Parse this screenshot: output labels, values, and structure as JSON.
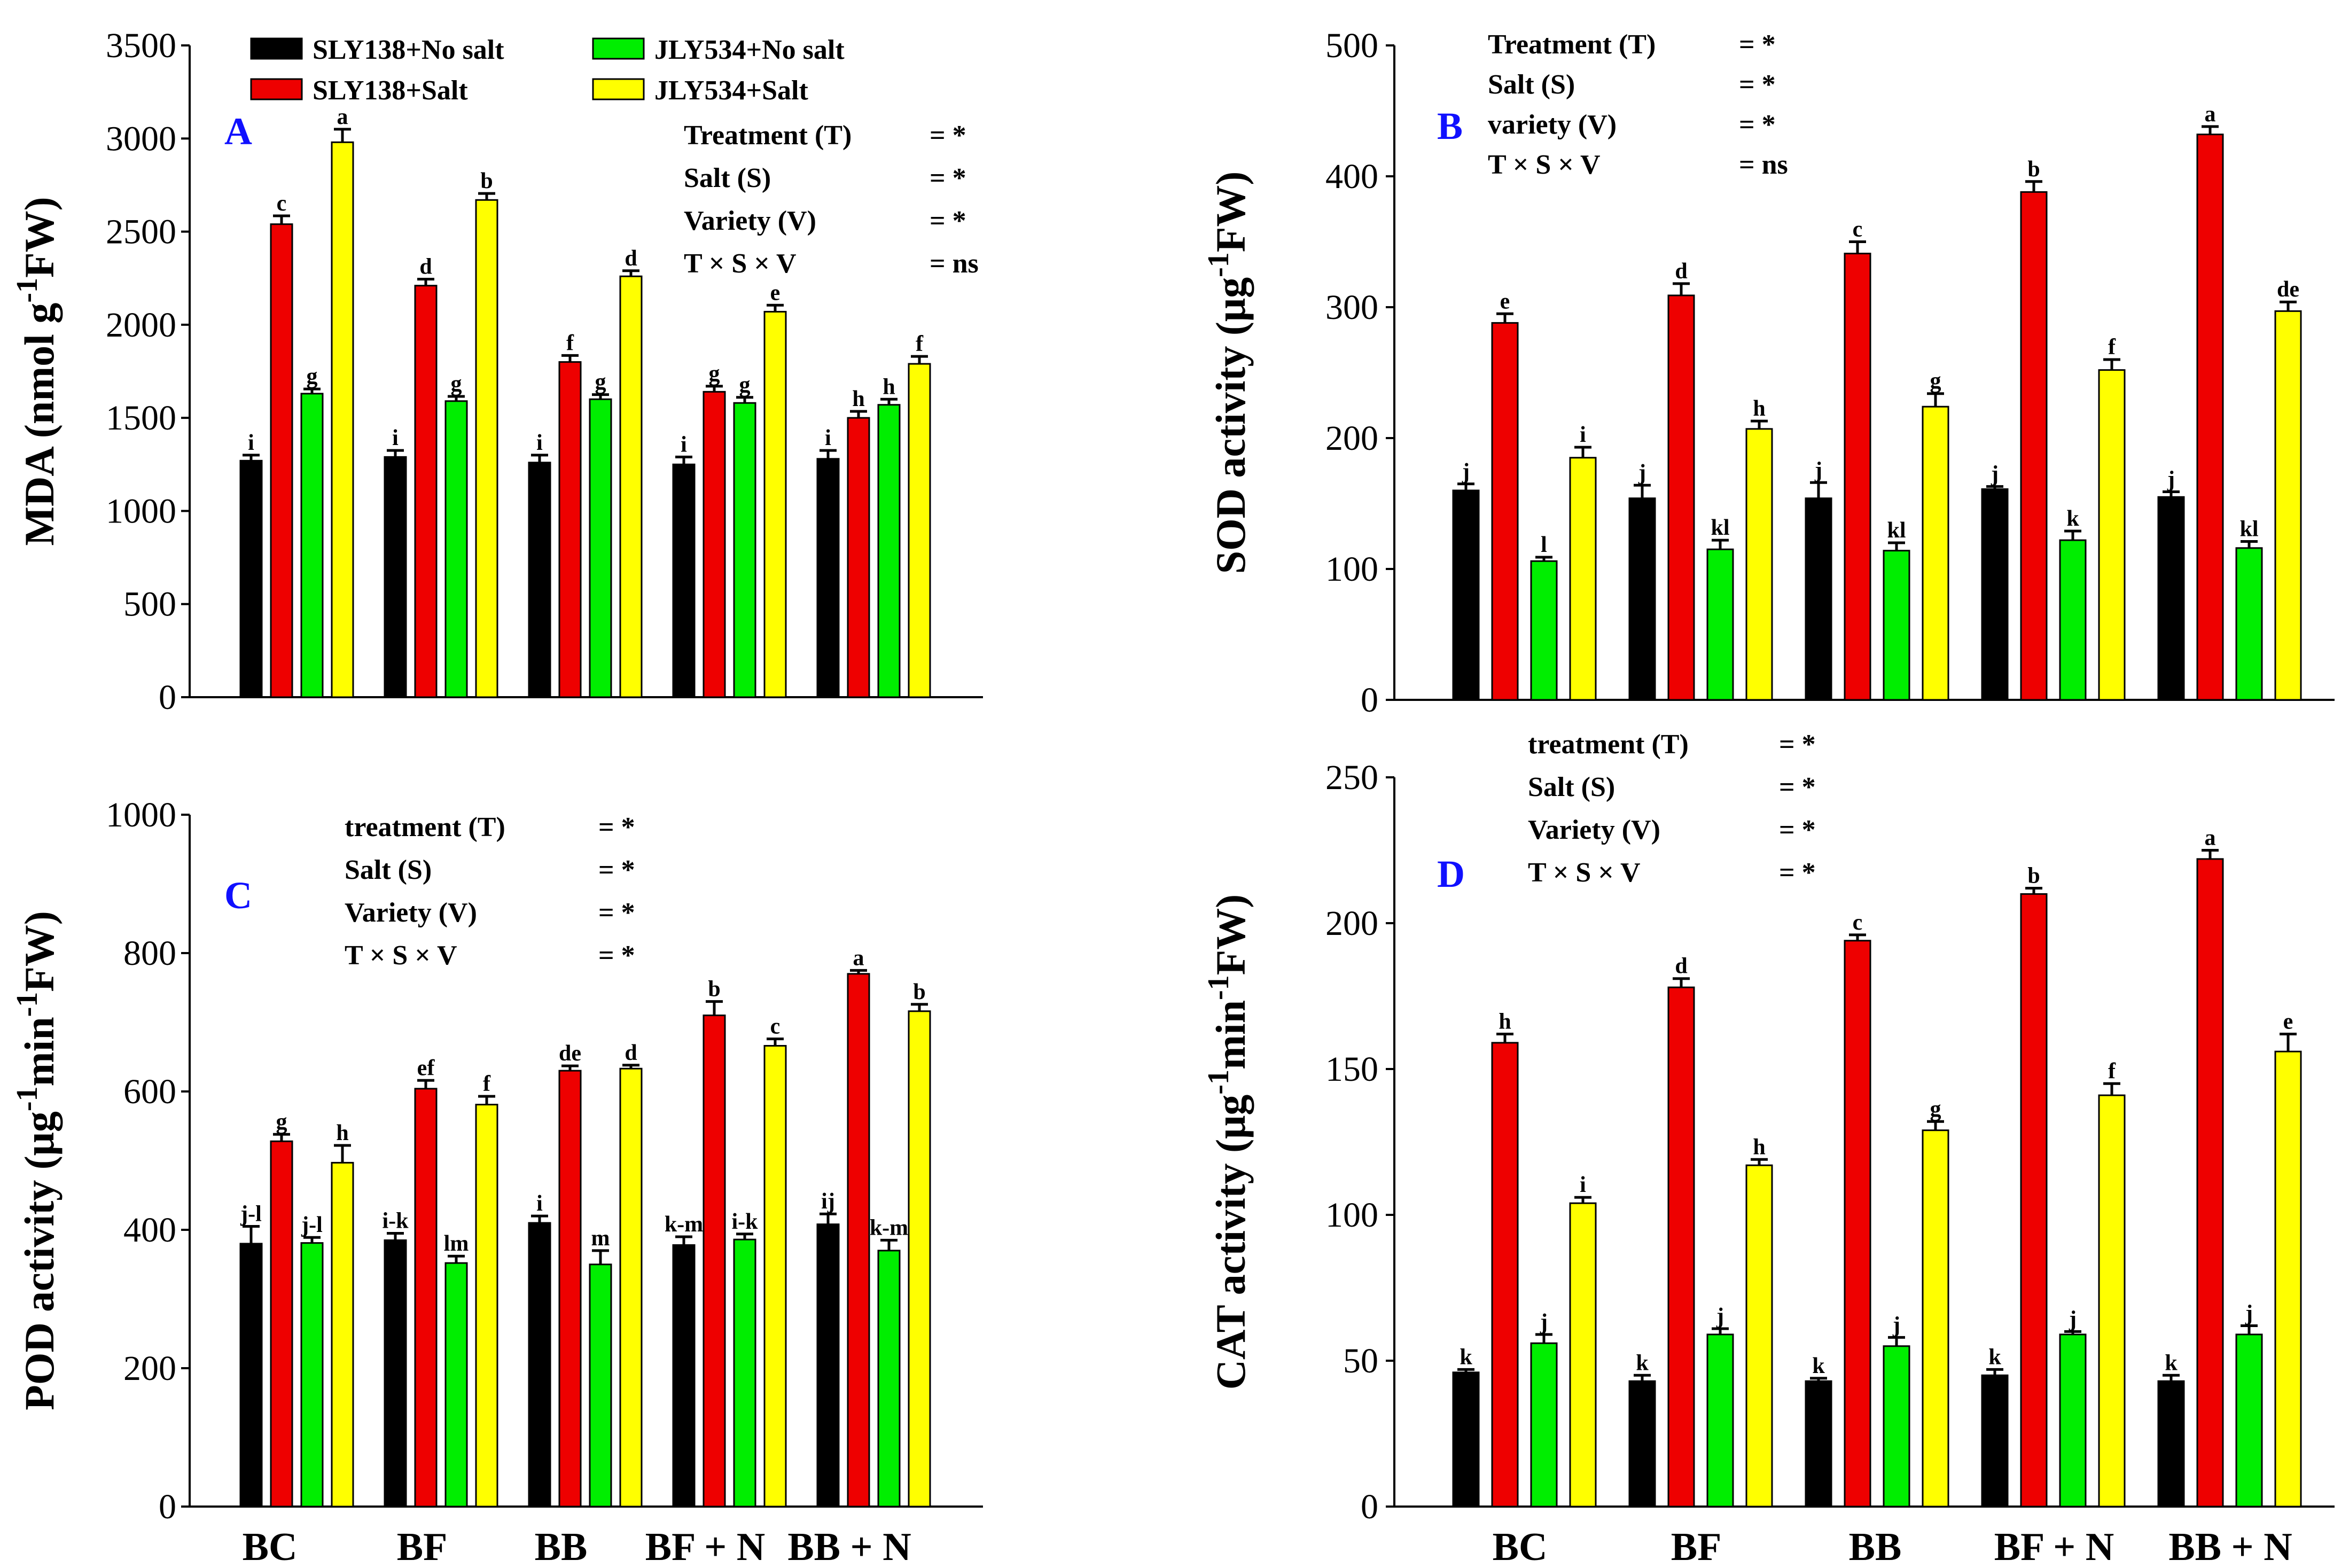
{
  "legend": [
    {
      "label": "SLY138+No salt",
      "color": "#000000"
    },
    {
      "label": "JLY534+No salt",
      "color": "#00ee00"
    },
    {
      "label": "SLY138+Salt",
      "color": "#ee0000"
    },
    {
      "label": "JLY534+Salt",
      "color": "#ffff00"
    }
  ],
  "chart_data": [
    {
      "type": "bar",
      "panel": "A",
      "title": "",
      "ylabel": "MDA (nmol g-1FW)",
      "ylabel_main": "MDA (nmol g",
      "ylabel_sup": "-1",
      "ylabel_end": "FW)",
      "xlabel": "",
      "ylim": [
        0,
        3500
      ],
      "yticks": [
        0,
        500,
        1000,
        1500,
        2000,
        2500,
        3000,
        3500
      ],
      "categories": [
        "BC",
        "BF",
        "BB",
        "BF + N",
        "BB + N"
      ],
      "show_categories": false,
      "series": [
        {
          "name": "SLY138+No salt",
          "color": "#000000",
          "values": [
            1270,
            1290,
            1260,
            1250,
            1280
          ],
          "errors": [
            30,
            35,
            40,
            40,
            45
          ],
          "letters": [
            "i",
            "i",
            "i",
            "i",
            "i"
          ]
        },
        {
          "name": "SLY138+Salt",
          "color": "#ee0000",
          "values": [
            2540,
            2210,
            1800,
            1640,
            1500
          ],
          "errors": [
            45,
            35,
            35,
            30,
            35
          ],
          "letters": [
            "c",
            "d",
            "f",
            "g",
            "h"
          ]
        },
        {
          "name": "JLY534+No salt",
          "color": "#00ee00",
          "values": [
            1630,
            1590,
            1600,
            1580,
            1570
          ],
          "errors": [
            25,
            25,
            25,
            30,
            30
          ],
          "letters": [
            "g",
            "g",
            "g",
            "g",
            "h"
          ]
        },
        {
          "name": "JLY534+Salt",
          "color": "#ffff00",
          "values": [
            2980,
            2670,
            2260,
            2070,
            1790
          ],
          "errors": [
            70,
            35,
            30,
            35,
            40
          ],
          "letters": [
            "a",
            "b",
            "d",
            "e",
            "f"
          ]
        }
      ],
      "stats": [
        {
          "term": "Treatment  (T)",
          "value": "=  *"
        },
        {
          "term": "Salt (S)",
          "value": "=  *"
        },
        {
          "term": "Variety  (V)",
          "value": "=  *"
        },
        {
          "term": "T × S × V",
          "value": "=  ns"
        }
      ]
    },
    {
      "type": "bar",
      "panel": "B",
      "title": "",
      "ylabel": "SOD activity (μg-1FW)",
      "ylabel_main": "SOD activity (μg",
      "ylabel_sup": "-1",
      "ylabel_end": "FW)",
      "xlabel": "",
      "ylim": [
        0,
        500
      ],
      "yticks": [
        0,
        100,
        200,
        300,
        400,
        500
      ],
      "categories": [
        "BC",
        "BF",
        "BB",
        "BF + N",
        "BB + N"
      ],
      "show_categories": false,
      "series": [
        {
          "name": "SLY138+No salt",
          "color": "#000000",
          "values": [
            160,
            154,
            154,
            161,
            155
          ],
          "errors": [
            5,
            10,
            12,
            2,
            4
          ],
          "letters": [
            "j",
            "j",
            "j",
            "j",
            "j"
          ]
        },
        {
          "name": "SLY138+Salt",
          "color": "#ee0000",
          "values": [
            288,
            309,
            341,
            388,
            432
          ],
          "errors": [
            7,
            9,
            9,
            8,
            6
          ],
          "letters": [
            "e",
            "d",
            "c",
            "b",
            "a"
          ]
        },
        {
          "name": "JLY534+No salt",
          "color": "#00ee00",
          "values": [
            106,
            115,
            114,
            122,
            116
          ],
          "errors": [
            3,
            7,
            6,
            7,
            5
          ],
          "letters": [
            "l",
            "kl",
            "kl",
            "k",
            "kl"
          ]
        },
        {
          "name": "JLY534+Salt",
          "color": "#ffff00",
          "values": [
            185,
            207,
            224,
            252,
            297
          ],
          "errors": [
            8,
            6,
            10,
            8,
            7
          ],
          "letters": [
            "i",
            "h",
            "g",
            "f",
            "de"
          ]
        }
      ],
      "stats": [
        {
          "term": "Treatment  (T)",
          "value": "=  *"
        },
        {
          "term": "Salt (S)",
          "value": "=  *"
        },
        {
          "term": "variety (V)",
          "value": "=  *"
        },
        {
          "term": "T × S × V",
          "value": "=  ns"
        }
      ]
    },
    {
      "type": "bar",
      "panel": "C",
      "title": "",
      "ylabel": "POD activity (μg-1min-1FW)",
      "ylabel_main": "POD activity (μg",
      "ylabel_sup": "-1",
      "ylabel_mid": "min",
      "ylabel_sup2": "-1",
      "ylabel_end": "FW)",
      "xlabel": "",
      "ylim": [
        0,
        1000
      ],
      "yticks": [
        0,
        200,
        400,
        600,
        800,
        1000
      ],
      "categories": [
        "BC",
        "BF",
        "BB",
        "BF + N",
        "BB + N"
      ],
      "show_categories": true,
      "series": [
        {
          "name": "SLY138+No salt",
          "color": "#000000",
          "values": [
            380,
            385,
            410,
            378,
            408
          ],
          "errors": [
            25,
            10,
            10,
            12,
            15
          ],
          "letters": [
            "j-l",
            "i-k",
            "i",
            "k-m",
            "ij"
          ]
        },
        {
          "name": "SLY138+Salt",
          "color": "#ee0000",
          "values": [
            528,
            604,
            630,
            710,
            770
          ],
          "errors": [
            10,
            12,
            7,
            20,
            5
          ],
          "letters": [
            "g",
            "ef",
            "de",
            "b",
            "a"
          ]
        },
        {
          "name": "JLY534+No salt",
          "color": "#00ee00",
          "values": [
            381,
            352,
            350,
            386,
            370
          ],
          "errors": [
            8,
            10,
            20,
            8,
            15
          ],
          "letters": [
            "j-l",
            "lm",
            "m",
            "i-k",
            "k-m"
          ]
        },
        {
          "name": "JLY534+Salt",
          "color": "#ffff00",
          "values": [
            497,
            581,
            633,
            666,
            716
          ],
          "errors": [
            25,
            12,
            5,
            10,
            10
          ],
          "letters": [
            "h",
            "f",
            "d",
            "c",
            "b"
          ]
        }
      ],
      "stats": [
        {
          "term": "treatment (T)",
          "value": "= *"
        },
        {
          "term": "Salt (S)",
          "value": "= *"
        },
        {
          "term": "Variety (V)",
          "value": "= *"
        },
        {
          "term": "T × S × V",
          "value": "= *"
        }
      ]
    },
    {
      "type": "bar",
      "panel": "D",
      "title": "",
      "ylabel": "CAT activity (μg-1min-1FW)",
      "ylabel_main": "CAT activity (μg",
      "ylabel_sup": "-1",
      "ylabel_mid": "min",
      "ylabel_sup2": "-1",
      "ylabel_end": "FW)",
      "xlabel": "",
      "ylim": [
        0,
        250
      ],
      "yticks": [
        0,
        50,
        100,
        150,
        200,
        250
      ],
      "categories": [
        "BC",
        "BF",
        "BB",
        "BF + N",
        "BB + N"
      ],
      "show_categories": true,
      "series": [
        {
          "name": "SLY138+No salt",
          "color": "#000000",
          "values": [
            46,
            43,
            43,
            45,
            43
          ],
          "errors": [
            1,
            2,
            1,
            2,
            2
          ],
          "letters": [
            "k",
            "k",
            "k",
            "k",
            "k"
          ]
        },
        {
          "name": "SLY138+Salt",
          "color": "#ee0000",
          "values": [
            159,
            178,
            194,
            210,
            222
          ],
          "errors": [
            3,
            3,
            2,
            2,
            3
          ],
          "letters": [
            "h",
            "d",
            "c",
            "b",
            "a"
          ]
        },
        {
          "name": "JLY534+No salt",
          "color": "#00ee00",
          "values": [
            56,
            59,
            55,
            59,
            59
          ],
          "errors": [
            3,
            2,
            3,
            1,
            3
          ],
          "letters": [
            "j",
            "j",
            "j",
            "j",
            "j"
          ]
        },
        {
          "name": "JLY534+Salt",
          "color": "#ffff00",
          "values": [
            104,
            117,
            129,
            141,
            156
          ],
          "errors": [
            2,
            2,
            3,
            4,
            6
          ],
          "letters": [
            "i",
            "h",
            "g",
            "f",
            "e"
          ]
        }
      ],
      "stats": [
        {
          "term": "treatment (T)",
          "value": "= *"
        },
        {
          "term": "Salt (S)",
          "value": "= *"
        },
        {
          "term": "Variety (V)",
          "value": "= *"
        },
        {
          "term": "T × S × V",
          "value": "= *"
        }
      ]
    }
  ]
}
